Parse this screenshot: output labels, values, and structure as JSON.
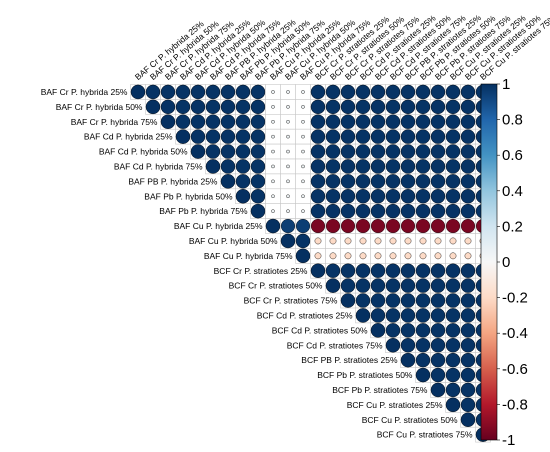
{
  "chart_data": {
    "type": "heatmap",
    "subtype": "correlation-matrix-upper-circles",
    "variables": [
      "BAF Cr P. hybrida 25%",
      "BAF Cr P. hybrida 50%",
      "BAF Cr P. hybrida 75%",
      "BAF Cd P. hybrida 25%",
      "BAF Cd P. hybrida 50%",
      "BAF Cd P. hybrida 75%",
      "BAF PB P. hybrida 25%",
      "BAF Pb P. hybrida 50%",
      "BAF Pb P. hybrida 75%",
      "BAF Cu P. hybrida 25%",
      "BAF Cu P. hybrida 50%",
      "BAF Cu P. hybrida 75%",
      "BCF Cr P. stratiotes 25%",
      "BCF Cr P. stratiotes 50%",
      "BCF Cr P. stratiotes 75%",
      "BCF Cd P. stratiotes 25%",
      "BCF Cd P. stratiotes 50%",
      "BCF Cd P. stratiotes 75%",
      "BCF PB P. stratiotes 25%",
      "BCF Pb P. stratiotes 50%",
      "BCF Pb P. stratiotes 75%",
      "BCF Cu P. stratiotes 25%",
      "BCF Cu P. stratiotes 50%",
      "BCF Cu P. stratiotes 75%"
    ],
    "column_labels": [
      "BAF Cr P. hybrida 25%",
      "BAF Cr P. hybrida 50%",
      "BAF Cr P. hybrida 75%",
      "BAF Cd P. hybrida 25%",
      "BAF Cd P. hybrida 50%",
      "BAF Cd P. hybrida 75%",
      "BAF PB P. hybrida 25%",
      "BAF Pb P. hybrida 50%",
      "BAF Pb P. hybrida 75%",
      "BAF Cu P. hybrida 25%",
      "BAF Cu P. hybrida 50%",
      "BAF Cu P. hybrida 75%",
      "BCF Cr P. stratiotes 25%",
      "BCF Cr P. stratiotes 50%",
      "BCF Cr P. stratiotes 75%",
      "BCF Cd P. stratiotes 25%",
      "BCF Cd P. stratiotes 50%",
      "BCF Cd P. stratiotes 75%",
      "BCF PB P. stratiotes 25%",
      "BCF Pb P. stratiotes 50%",
      "BCF Pb P. stratiotes 75%",
      "BCF Cu P. stratiotes 25%",
      "BCF Cu P. stratiotes 50%",
      "BCF Cu P. stratiotes 75%"
    ],
    "groups": {
      "A_to_C": 0.99,
      "A_to_B": 0.05,
      "C_to_B": -0.2,
      "Cu25_to_B": -0.95,
      "Cu25_to_C": 0.1,
      "Cu25_to_Cu_rest": 0.95,
      "within_blocks": 0.99
    },
    "colorbar": {
      "ticks": [
        "1",
        "0.8",
        "0.6",
        "0.4",
        "0.2",
        "0",
        "-0.2",
        "-0.4",
        "-0.6",
        "-0.8",
        "-1"
      ],
      "range": [
        -1,
        1
      ],
      "high_color": "#053061",
      "mid_color": "#f7f7f7",
      "low_color": "#67001f"
    },
    "title": "",
    "grid": true
  }
}
